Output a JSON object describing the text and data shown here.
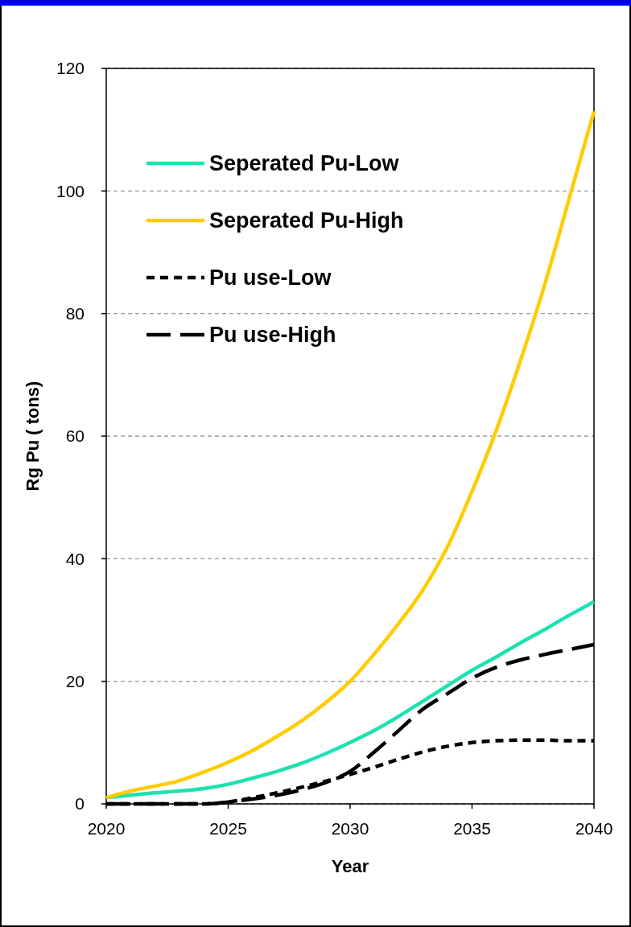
{
  "chart_data": {
    "type": "line",
    "xlabel": "Year",
    "ylabel": "Rg Pu ( tons)",
    "x": [
      2020,
      2021,
      2022,
      2023,
      2024,
      2025,
      2026,
      2027,
      2028,
      2029,
      2030,
      2031,
      2032,
      2033,
      2034,
      2035,
      2036,
      2037,
      2038,
      2039,
      2040
    ],
    "series": [
      {
        "name": "Seperated Pu-Low",
        "color": "#1de2b0",
        "line_style": "solid",
        "values": [
          1,
          1.4,
          1.8,
          2.1,
          2.5,
          3.2,
          4.2,
          5.3,
          6.6,
          8.2,
          10,
          12,
          14.3,
          16.8,
          19.3,
          21.8,
          24,
          26.3,
          28.5,
          30.8,
          33
        ]
      },
      {
        "name": "Seperated Pu-High",
        "color": "#ffcc00",
        "line_style": "solid",
        "values": [
          1,
          2.1,
          2.9,
          3.8,
          5.2,
          6.8,
          8.7,
          11,
          13.5,
          16.5,
          20,
          24.5,
          29.5,
          35,
          42,
          51,
          61,
          72.5,
          85,
          99,
          113
        ]
      },
      {
        "name": "Pu use-Low",
        "color": "#000000",
        "line_style": "dashed",
        "values": [
          0,
          0,
          0,
          0,
          0,
          0.3,
          1,
          1.8,
          2.7,
          3.7,
          4.8,
          6,
          7.3,
          8.5,
          9.4,
          10,
          10.3,
          10.4,
          10.4,
          10.3,
          10.3
        ]
      },
      {
        "name": "Pu use-High",
        "color": "#000000",
        "line_style": "dashed",
        "values": [
          0,
          0,
          0,
          0,
          0,
          0.3,
          0.8,
          1.4,
          2.3,
          3.5,
          5.3,
          8.5,
          12,
          15.5,
          18,
          20.5,
          22.3,
          23.5,
          24.4,
          25.2,
          26
        ]
      }
    ],
    "xlim": [
      2020,
      2040
    ],
    "xticks": [
      2020,
      2025,
      2030,
      2035,
      2040
    ],
    "ylim": [
      0,
      120
    ],
    "yticks": [
      0,
      20,
      40,
      60,
      80,
      100,
      120
    ],
    "grid": "y",
    "legend": "top left",
    "marker": "none"
  }
}
